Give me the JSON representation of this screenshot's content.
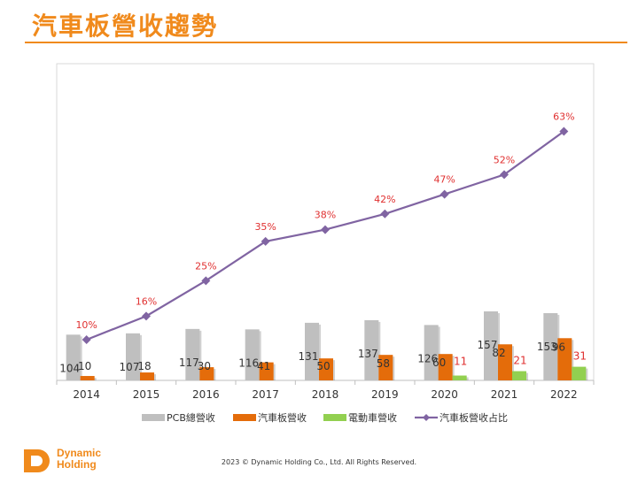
{
  "slide": {
    "title": "汽車板營收趨勢",
    "footer": "2023 © Dynamic Holding Co., Ltd. All Rights Reserved.",
    "logo_line1": "Dynamic",
    "logo_line2": "Holding"
  },
  "colors": {
    "accent": "#f08a1c",
    "pcb": "#bfbfbf",
    "auto": "#e46c0a",
    "ev": "#92d050",
    "line": "#8064a2",
    "pct_label": "#e03030"
  },
  "chart_data": {
    "type": "bar",
    "categories": [
      "2014",
      "2015",
      "2016",
      "2017",
      "2018",
      "2019",
      "2020",
      "2021",
      "2022"
    ],
    "series": [
      {
        "name": "PCB總營收",
        "type": "bar",
        "values": [
          104,
          107,
          117,
          116,
          131,
          137,
          126,
          157,
          153
        ],
        "labels": [
          "104",
          "107",
          "117",
          "116",
          "131",
          "137",
          "126",
          "157",
          "153"
        ]
      },
      {
        "name": "汽車板營收",
        "type": "bar",
        "values": [
          10,
          18,
          30,
          41,
          50,
          58,
          60,
          82,
          96
        ],
        "labels": [
          "10",
          "18",
          "30",
          "41",
          "50",
          "58",
          "60",
          "82",
          "96"
        ]
      },
      {
        "name": "電動車營收",
        "type": "bar",
        "values": [
          null,
          null,
          null,
          null,
          null,
          null,
          11,
          21,
          31
        ],
        "labels": [
          "",
          "",
          "",
          "",
          "",
          "",
          "11",
          "21",
          "31"
        ]
      },
      {
        "name": "汽車板營收占比",
        "type": "line",
        "values": [
          10,
          16,
          25,
          35,
          38,
          42,
          47,
          52,
          63
        ],
        "labels": [
          "10%",
          "16%",
          "25%",
          "35%",
          "38%",
          "42%",
          "47%",
          "52%",
          "63%"
        ]
      }
    ],
    "ylim": [
      0,
      170
    ],
    "y2lim": [
      0,
      75
    ],
    "legend_position": "bottom",
    "grid": false
  }
}
